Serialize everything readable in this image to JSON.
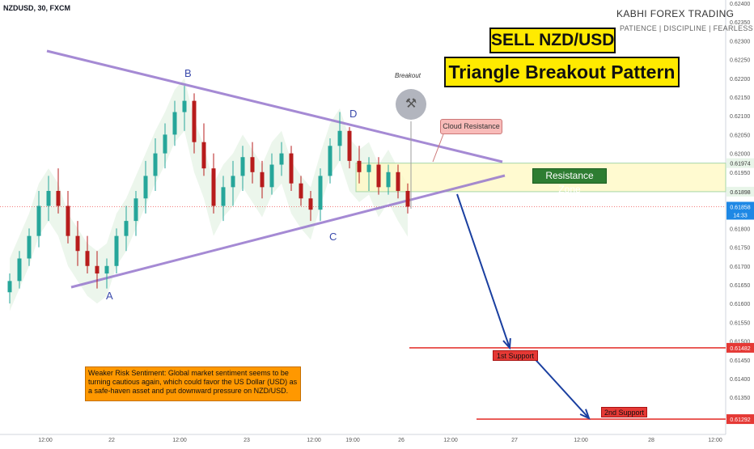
{
  "header": {
    "ticker": "NZDUSD, 30, FXCM"
  },
  "brand": {
    "name": "KABHI FOREX TRADING",
    "tagline": "PATIENCE | DISCIPLINE | FEARLESS"
  },
  "titles": {
    "line1": "SELL NZD/USD",
    "line2": "Triangle Breakout Pattern"
  },
  "labels": {
    "resistance_zone": "Resistance Zone",
    "cloud_resistance": "Cloud Resistance",
    "support1": "1st Support",
    "support2": "2nd Support",
    "breakout": "Breakout",
    "points": [
      "A",
      "B",
      "C",
      "D"
    ]
  },
  "note": "Weaker Risk Sentiment: Global market sentiment seems to be turning cautious again, which could favor the US Dollar (USD) as a safe-haven asset and put downward pressure on NZD/USD.",
  "colors": {
    "up": "#26a69a",
    "down": "#b71c1c",
    "bearish_arrow": "#1a3fa0",
    "support": "#e53935",
    "pattern": "#9575cd",
    "resistance_zone": "#fffde7",
    "cloud": "#e8f5e9",
    "title_bg": "#ffea00"
  },
  "icons": {
    "breakout": "hammer-icon"
  },
  "chart_data": {
    "type": "candlestick",
    "title": "NZDUSD, 30, FXCM",
    "y_ticks": [
      "0.62400",
      "0.62350",
      "0.62300",
      "0.62250",
      "0.62200",
      "0.62150",
      "0.62100",
      "0.62050",
      "0.62000",
      "0.61950",
      "0.61900",
      "0.61850",
      "0.61800",
      "0.61750",
      "0.61700",
      "0.61650",
      "0.61600",
      "0.61550",
      "0.61500",
      "0.61450",
      "0.61400",
      "0.61350",
      "0.61300"
    ],
    "x_ticks": [
      "12:00",
      "22",
      "12:00",
      "23",
      "12:00",
      "19:00",
      "26",
      "12:00",
      "27",
      "12:00",
      "28",
      "12:00"
    ],
    "ylim": [
      0.6129,
      0.624
    ],
    "price_tags": [
      {
        "label": "0.61974",
        "value": 0.61974
      },
      {
        "label": "0.61898",
        "value": 0.61898
      },
      {
        "label": "0.61858",
        "value": 0.61858,
        "countdown": "14:33"
      },
      {
        "label": "0.61482",
        "value": 0.61482
      },
      {
        "label": "0.61292",
        "value": 0.61292
      }
    ],
    "current_price": 0.61858,
    "resistance_zone": [
      0.61898,
      0.61974
    ],
    "supports": [
      {
        "name": "1st Support",
        "value": 0.61482
      },
      {
        "name": "2nd Support",
        "value": 0.61292
      }
    ],
    "triangle": {
      "upper_line": [
        [
          0,
          0.6228
        ],
        [
          50,
          0.6198
        ]
      ],
      "lower_line": [
        [
          2,
          0.6164
        ],
        [
          50,
          0.6194
        ]
      ]
    },
    "pivots": [
      {
        "label": "A",
        "bar": 10,
        "value": 0.6165
      },
      {
        "label": "B",
        "bar": 18,
        "value": 0.6218
      },
      {
        "label": "C",
        "bar": 32,
        "value": 0.6182
      },
      {
        "label": "D",
        "bar": 34,
        "value": 0.6211
      }
    ],
    "candles": [
      [
        0.6163,
        0.6168,
        0.616,
        0.6166
      ],
      [
        0.6166,
        0.6174,
        0.6164,
        0.6172
      ],
      [
        0.6172,
        0.618,
        0.617,
        0.6178
      ],
      [
        0.6178,
        0.619,
        0.6175,
        0.6186
      ],
      [
        0.6186,
        0.6194,
        0.6182,
        0.619
      ],
      [
        0.619,
        0.6196,
        0.6184,
        0.6186
      ],
      [
        0.6186,
        0.619,
        0.6176,
        0.6178
      ],
      [
        0.6178,
        0.6182,
        0.617,
        0.6174
      ],
      [
        0.6174,
        0.6178,
        0.6168,
        0.617
      ],
      [
        0.617,
        0.6174,
        0.6164,
        0.6168
      ],
      [
        0.6168,
        0.6172,
        0.6164,
        0.617
      ],
      [
        0.617,
        0.618,
        0.6168,
        0.6178
      ],
      [
        0.6178,
        0.6186,
        0.6174,
        0.6182
      ],
      [
        0.6182,
        0.619,
        0.6178,
        0.6188
      ],
      [
        0.6188,
        0.6198,
        0.6184,
        0.6194
      ],
      [
        0.6194,
        0.6204,
        0.619,
        0.62
      ],
      [
        0.62,
        0.6208,
        0.6196,
        0.6205
      ],
      [
        0.6205,
        0.6214,
        0.6202,
        0.6211
      ],
      [
        0.6211,
        0.6218,
        0.6206,
        0.6214
      ],
      [
        0.6214,
        0.6216,
        0.62,
        0.6203
      ],
      [
        0.6203,
        0.6208,
        0.6194,
        0.6196
      ],
      [
        0.6196,
        0.62,
        0.6184,
        0.6186
      ],
      [
        0.6186,
        0.6194,
        0.6182,
        0.6191
      ],
      [
        0.6191,
        0.6198,
        0.6186,
        0.6194
      ],
      [
        0.6194,
        0.6202,
        0.619,
        0.6199
      ],
      [
        0.6199,
        0.6203,
        0.6192,
        0.6195
      ],
      [
        0.6195,
        0.6198,
        0.6188,
        0.6191
      ],
      [
        0.6191,
        0.62,
        0.6189,
        0.6197
      ],
      [
        0.6197,
        0.6203,
        0.6194,
        0.62
      ],
      [
        0.62,
        0.6202,
        0.619,
        0.6192
      ],
      [
        0.6192,
        0.6194,
        0.6186,
        0.6188
      ],
      [
        0.6188,
        0.619,
        0.6182,
        0.6185
      ],
      [
        0.6185,
        0.6196,
        0.6182,
        0.6194
      ],
      [
        0.6194,
        0.6204,
        0.6192,
        0.6202
      ],
      [
        0.6202,
        0.6211,
        0.6198,
        0.6206
      ],
      [
        0.6206,
        0.6207,
        0.6196,
        0.6198
      ],
      [
        0.6198,
        0.6202,
        0.6192,
        0.6195
      ],
      [
        0.6195,
        0.6199,
        0.619,
        0.6197
      ],
      [
        0.6197,
        0.6199,
        0.6189,
        0.6191
      ],
      [
        0.6191,
        0.6197,
        0.6189,
        0.6195
      ],
      [
        0.6195,
        0.6197,
        0.6188,
        0.619
      ],
      [
        0.619,
        0.6192,
        0.6184,
        0.61858
      ]
    ],
    "projection": [
      {
        "from": "current",
        "to": 0.61482
      },
      {
        "from": 0.61482,
        "to": 0.61292
      }
    ]
  }
}
